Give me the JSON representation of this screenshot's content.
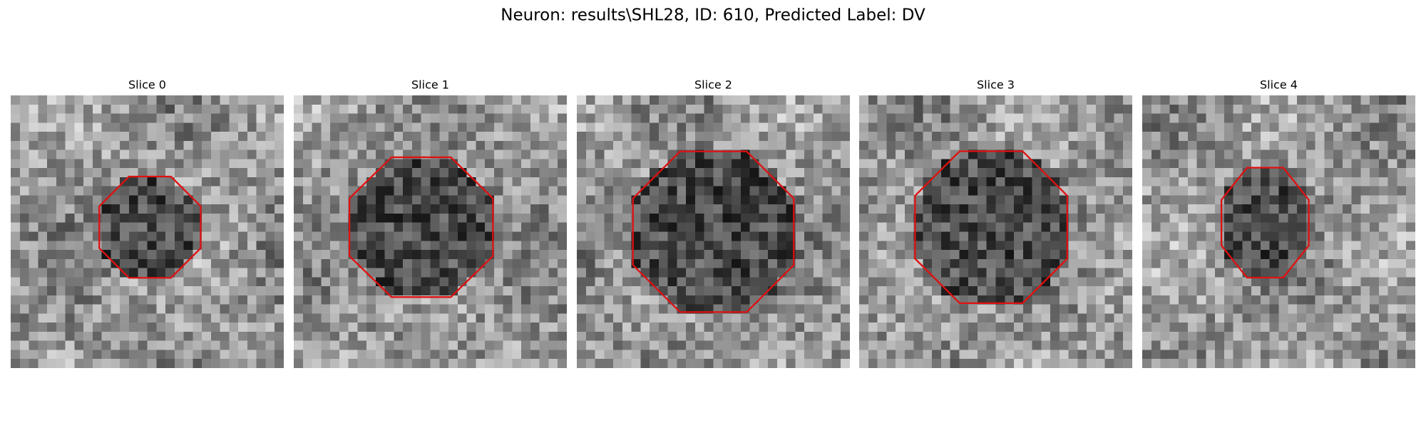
{
  "title": "Neuron: results\\SHL28, ID: 610, Predicted Label: DV",
  "panels": [
    {
      "label": "Slice 0"
    },
    {
      "label": "Slice 1"
    },
    {
      "label": "Slice 2"
    },
    {
      "label": "Slice 3"
    },
    {
      "label": "Slice 4"
    }
  ]
}
